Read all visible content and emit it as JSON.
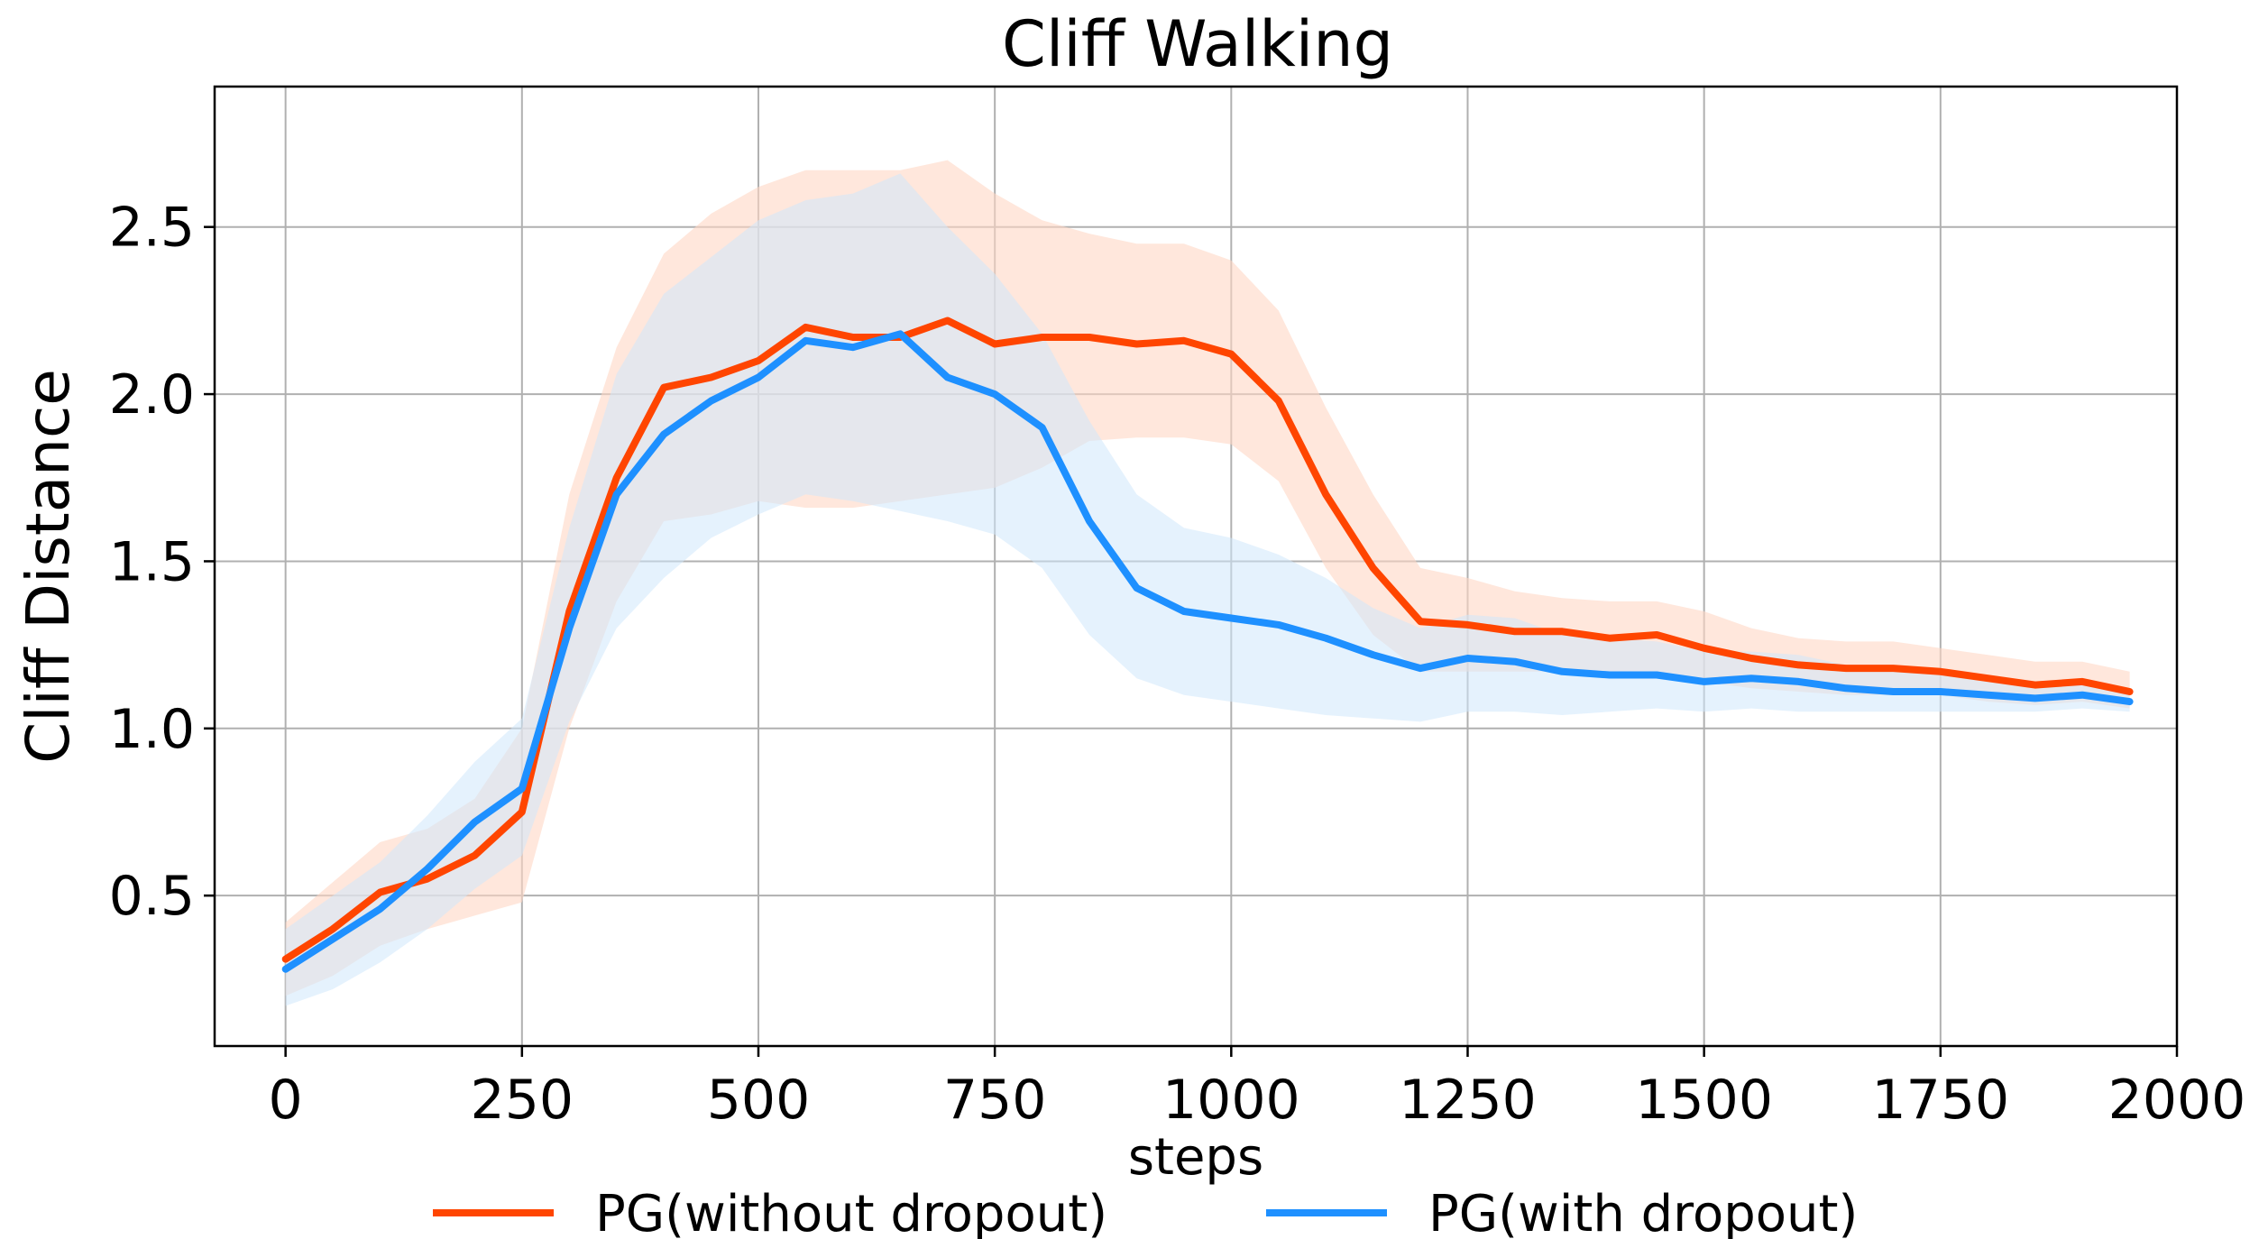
{
  "chart_data": {
    "type": "line",
    "title": "Cliff Walking",
    "xlabel": "steps",
    "ylabel": "Cliff Distance",
    "xlim": [
      -75,
      2000
    ],
    "ylim": [
      0.05,
      2.92
    ],
    "xticks": [
      0,
      250,
      500,
      750,
      1000,
      1250,
      1500,
      1750,
      2000
    ],
    "yticks": [
      0.5,
      1.0,
      1.5,
      2.0,
      2.5
    ],
    "xtick_labels": [
      "0",
      "250",
      "500",
      "750",
      "1000",
      "1250",
      "1500",
      "1750",
      "2000"
    ],
    "ytick_labels": [
      "0.5",
      "1.0",
      "1.5",
      "2.0",
      "2.5"
    ],
    "grid": true,
    "legend_position": "bottom-center",
    "x": [
      0,
      50,
      100,
      150,
      200,
      250,
      300,
      350,
      400,
      450,
      500,
      550,
      600,
      650,
      700,
      750,
      800,
      850,
      900,
      950,
      1000,
      1050,
      1100,
      1150,
      1200,
      1250,
      1300,
      1350,
      1400,
      1450,
      1500,
      1550,
      1600,
      1650,
      1700,
      1750,
      1800,
      1850,
      1900,
      1950
    ],
    "series": [
      {
        "name": "PG(without dropout)",
        "color": "#ff4500",
        "band_color": "#ffd7c4",
        "values": [
          0.31,
          0.4,
          0.51,
          0.55,
          0.62,
          0.75,
          1.35,
          1.75,
          2.02,
          2.05,
          2.1,
          2.2,
          2.17,
          2.17,
          2.22,
          2.15,
          2.17,
          2.17,
          2.15,
          2.16,
          2.12,
          1.98,
          1.7,
          1.48,
          1.32,
          1.31,
          1.29,
          1.29,
          1.27,
          1.28,
          1.24,
          1.21,
          1.19,
          1.18,
          1.18,
          1.17,
          1.15,
          1.13,
          1.14,
          1.11
        ],
        "lower": [
          0.2,
          0.26,
          0.35,
          0.4,
          0.44,
          0.48,
          1.0,
          1.38,
          1.62,
          1.64,
          1.68,
          1.66,
          1.66,
          1.68,
          1.7,
          1.72,
          1.78,
          1.86,
          1.87,
          1.87,
          1.85,
          1.74,
          1.48,
          1.28,
          1.17,
          1.17,
          1.17,
          1.17,
          1.17,
          1.17,
          1.14,
          1.12,
          1.11,
          1.1,
          1.1,
          1.1,
          1.08,
          1.07,
          1.08,
          1.06
        ],
        "upper": [
          0.42,
          0.54,
          0.66,
          0.7,
          0.79,
          1.0,
          1.7,
          2.14,
          2.42,
          2.54,
          2.62,
          2.67,
          2.67,
          2.67,
          2.7,
          2.6,
          2.52,
          2.48,
          2.45,
          2.45,
          2.4,
          2.25,
          1.96,
          1.7,
          1.48,
          1.45,
          1.41,
          1.39,
          1.38,
          1.38,
          1.35,
          1.3,
          1.27,
          1.26,
          1.26,
          1.24,
          1.22,
          1.2,
          1.2,
          1.17
        ]
      },
      {
        "name": "PG(with dropout)",
        "color": "#1e90ff",
        "band_color": "#cfe7fc",
        "values": [
          0.28,
          0.37,
          0.46,
          0.58,
          0.72,
          0.82,
          1.3,
          1.7,
          1.88,
          1.98,
          2.05,
          2.16,
          2.14,
          2.18,
          2.05,
          2.0,
          1.9,
          1.62,
          1.42,
          1.35,
          1.33,
          1.31,
          1.27,
          1.22,
          1.18,
          1.21,
          1.2,
          1.17,
          1.16,
          1.16,
          1.14,
          1.15,
          1.14,
          1.12,
          1.11,
          1.11,
          1.1,
          1.09,
          1.1,
          1.08
        ],
        "lower": [
          0.17,
          0.22,
          0.3,
          0.4,
          0.52,
          0.62,
          1.02,
          1.3,
          1.45,
          1.57,
          1.64,
          1.7,
          1.68,
          1.65,
          1.62,
          1.58,
          1.48,
          1.28,
          1.15,
          1.1,
          1.08,
          1.06,
          1.04,
          1.03,
          1.02,
          1.05,
          1.05,
          1.04,
          1.05,
          1.06,
          1.05,
          1.06,
          1.05,
          1.05,
          1.05,
          1.05,
          1.05,
          1.05,
          1.06,
          1.05
        ],
        "upper": [
          0.4,
          0.5,
          0.6,
          0.74,
          0.9,
          1.03,
          1.6,
          2.06,
          2.3,
          2.41,
          2.52,
          2.58,
          2.6,
          2.66,
          2.5,
          2.36,
          2.18,
          1.92,
          1.7,
          1.6,
          1.57,
          1.52,
          1.45,
          1.36,
          1.3,
          1.34,
          1.33,
          1.28,
          1.27,
          1.26,
          1.23,
          1.23,
          1.22,
          1.19,
          1.17,
          1.17,
          1.15,
          1.14,
          1.14,
          1.12
        ]
      }
    ]
  }
}
